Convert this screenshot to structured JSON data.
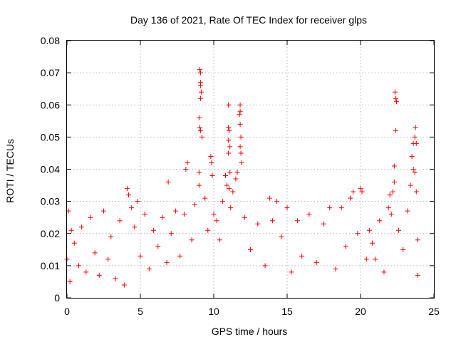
{
  "chart_data": {
    "type": "scatter",
    "title": "Day 136 of 2021, Rate Of TEC Index for receiver glps",
    "xlabel": "GPS time / hours",
    "ylabel": "ROTI / TECUs",
    "xlim": [
      0,
      25
    ],
    "ylim": [
      0,
      0.08
    ],
    "x_ticks": [
      0,
      5,
      10,
      15,
      20,
      25
    ],
    "x_tick_labels": [
      "0",
      "5",
      "10",
      "15",
      "20",
      "25"
    ],
    "y_ticks": [
      0,
      0.01,
      0.02,
      0.03,
      0.04,
      0.05,
      0.06,
      0.07,
      0.08
    ],
    "y_tick_labels": [
      "0",
      "0.01",
      "0.02",
      "0.03",
      "0.04",
      "0.05",
      "0.06",
      "0.07",
      "0.08"
    ],
    "grid": true,
    "marker": "plus",
    "color": "#ff0000",
    "series": [
      {
        "points": [
          [
            0.0,
            0.012
          ],
          [
            0.1,
            0.027
          ],
          [
            0.2,
            0.005
          ],
          [
            0.3,
            0.021
          ],
          [
            0.5,
            0.017
          ],
          [
            0.8,
            0.01
          ],
          [
            1.0,
            0.022
          ],
          [
            1.3,
            0.008
          ],
          [
            1.6,
            0.025
          ],
          [
            1.9,
            0.014
          ],
          [
            2.2,
            0.007
          ],
          [
            2.5,
            0.027
          ],
          [
            2.8,
            0.012
          ],
          [
            3.0,
            0.019
          ],
          [
            3.3,
            0.006
          ],
          [
            3.6,
            0.024
          ],
          [
            3.9,
            0.004
          ],
          [
            4.1,
            0.034
          ],
          [
            4.2,
            0.032
          ],
          [
            4.4,
            0.028
          ],
          [
            4.6,
            0.022
          ],
          [
            4.8,
            0.03
          ],
          [
            5.0,
            0.013
          ],
          [
            5.3,
            0.026
          ],
          [
            5.6,
            0.009
          ],
          [
            5.9,
            0.021
          ],
          [
            6.2,
            0.016
          ],
          [
            6.5,
            0.025
          ],
          [
            6.8,
            0.011
          ],
          [
            6.9,
            0.036
          ],
          [
            7.1,
            0.02
          ],
          [
            7.4,
            0.027
          ],
          [
            7.7,
            0.013
          ],
          [
            8.0,
            0.026
          ],
          [
            8.1,
            0.04
          ],
          [
            8.2,
            0.042
          ],
          [
            8.5,
            0.018
          ],
          [
            8.7,
            0.029
          ],
          [
            9.0,
            0.035
          ],
          [
            9.05,
            0.071
          ],
          [
            9.1,
            0.07
          ],
          [
            9.1,
            0.067
          ],
          [
            9.1,
            0.066
          ],
          [
            9.15,
            0.064
          ],
          [
            9.1,
            0.062
          ],
          [
            9.0,
            0.056
          ],
          [
            9.05,
            0.053
          ],
          [
            9.1,
            0.052
          ],
          [
            9.2,
            0.05
          ],
          [
            9.0,
            0.039
          ],
          [
            9.4,
            0.031
          ],
          [
            9.6,
            0.021
          ],
          [
            9.8,
            0.044
          ],
          [
            9.85,
            0.042
          ],
          [
            9.9,
            0.038
          ],
          [
            10.0,
            0.026
          ],
          [
            10.2,
            0.024
          ],
          [
            10.4,
            0.018
          ],
          [
            10.6,
            0.03
          ],
          [
            10.8,
            0.038
          ],
          [
            10.9,
            0.035
          ],
          [
            11.0,
            0.06
          ],
          [
            11.0,
            0.053
          ],
          [
            11.05,
            0.052
          ],
          [
            11.0,
            0.049
          ],
          [
            11.1,
            0.047
          ],
          [
            11.0,
            0.045
          ],
          [
            11.1,
            0.039
          ],
          [
            11.05,
            0.034
          ],
          [
            11.15,
            0.028
          ],
          [
            11.3,
            0.033
          ],
          [
            11.5,
            0.037
          ],
          [
            11.6,
            0.039
          ],
          [
            11.8,
            0.06
          ],
          [
            11.8,
            0.058
          ],
          [
            11.75,
            0.057
          ],
          [
            11.8,
            0.054
          ],
          [
            11.85,
            0.05
          ],
          [
            11.8,
            0.047
          ],
          [
            11.85,
            0.045
          ],
          [
            11.9,
            0.042
          ],
          [
            12.1,
            0.025
          ],
          [
            12.5,
            0.015
          ],
          [
            13.0,
            0.023
          ],
          [
            13.5,
            0.01
          ],
          [
            13.8,
            0.031
          ],
          [
            14.0,
            0.024
          ],
          [
            14.3,
            0.03
          ],
          [
            14.6,
            0.019
          ],
          [
            15.0,
            0.028
          ],
          [
            15.3,
            0.008
          ],
          [
            15.7,
            0.024
          ],
          [
            16.0,
            0.013
          ],
          [
            16.5,
            0.026
          ],
          [
            17.0,
            0.011
          ],
          [
            17.5,
            0.023
          ],
          [
            17.9,
            0.028
          ],
          [
            18.3,
            0.009
          ],
          [
            18.7,
            0.028
          ],
          [
            19.0,
            0.016
          ],
          [
            19.3,
            0.031
          ],
          [
            19.5,
            0.033
          ],
          [
            19.8,
            0.02
          ],
          [
            20.0,
            0.034
          ],
          [
            20.1,
            0.033
          ],
          [
            20.4,
            0.012
          ],
          [
            20.6,
            0.021
          ],
          [
            20.8,
            0.017
          ],
          [
            21.0,
            0.012
          ],
          [
            21.3,
            0.024
          ],
          [
            21.6,
            0.008
          ],
          [
            21.9,
            0.028
          ],
          [
            22.0,
            0.032
          ],
          [
            22.1,
            0.026
          ],
          [
            22.2,
            0.033
          ],
          [
            22.3,
            0.036
          ],
          [
            22.35,
            0.064
          ],
          [
            22.4,
            0.062
          ],
          [
            22.45,
            0.061
          ],
          [
            22.4,
            0.052
          ],
          [
            22.3,
            0.041
          ],
          [
            22.6,
            0.021
          ],
          [
            22.9,
            0.015
          ],
          [
            23.2,
            0.027
          ],
          [
            23.4,
            0.035
          ],
          [
            23.5,
            0.044
          ],
          [
            23.6,
            0.048
          ],
          [
            23.7,
            0.05
          ],
          [
            23.75,
            0.053
          ],
          [
            23.8,
            0.048
          ],
          [
            23.6,
            0.04
          ],
          [
            23.7,
            0.039
          ],
          [
            23.8,
            0.033
          ],
          [
            23.9,
            0.018
          ],
          [
            23.9,
            0.007
          ]
        ]
      }
    ]
  }
}
